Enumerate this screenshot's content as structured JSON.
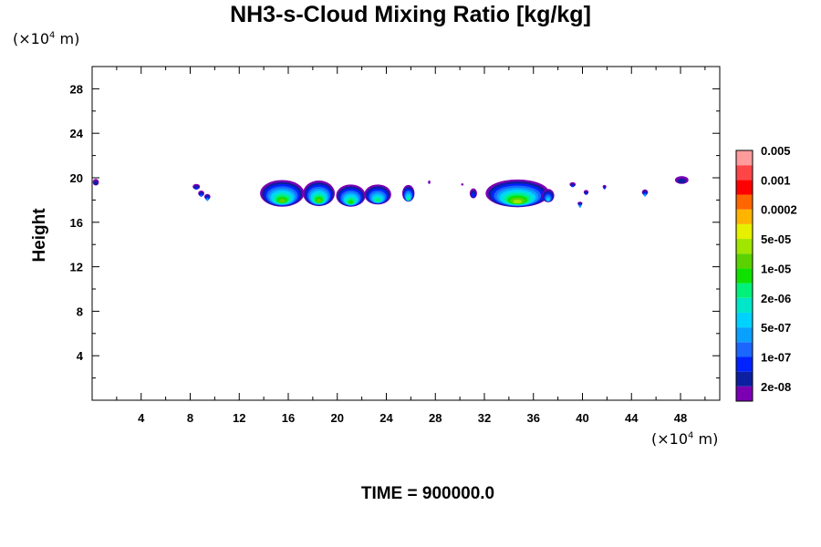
{
  "chart_data": {
    "type": "contour",
    "title": "NH3-s-Cloud Mixing Ratio [kg/kg]",
    "ylabel": "Height",
    "xunit": "(×10⁴ m)",
    "yunit": "(×10⁴ m)",
    "unit_prefix": "(×10",
    "unit_exp": "4",
    "unit_suffix": " m)",
    "xlim": [
      0,
      51.2
    ],
    "ylim": [
      0,
      30
    ],
    "xticks": [
      4,
      8,
      12,
      16,
      20,
      24,
      28,
      32,
      36,
      40,
      44,
      48
    ],
    "yticks": [
      4,
      8,
      12,
      16,
      20,
      24,
      28
    ],
    "colorbar": {
      "colors": [
        "#7b00b4",
        "#0c1fa0",
        "#0022ff",
        "#1a66ff",
        "#0aa0ff",
        "#00d2ff",
        "#00e6c8",
        "#00f07a",
        "#10e000",
        "#5ad200",
        "#a0e600",
        "#e6f000",
        "#ffb400",
        "#ff6600",
        "#ff0000",
        "#ff4646",
        "#ff9b9b"
      ],
      "labels": [
        "2e-08",
        "1e-07",
        "5e-07",
        "2e-06",
        "1e-05",
        "5e-05",
        "0.0002",
        "0.001",
        "0.005"
      ]
    },
    "blobs": [
      {
        "x": 0.3,
        "y": 19.6,
        "w": 0.5,
        "h": 0.6,
        "level": 1
      },
      {
        "x": 8.5,
        "y": 19.2,
        "w": 0.6,
        "h": 0.5,
        "level": 2
      },
      {
        "x": 8.9,
        "y": 18.6,
        "w": 0.5,
        "h": 0.5,
        "level": 3
      },
      {
        "x": 9.4,
        "y": 18.3,
        "w": 0.5,
        "h": 0.5,
        "level": 4
      },
      {
        "x": 15.5,
        "y": 18.6,
        "w": 3.6,
        "h": 2.4,
        "level": 9
      },
      {
        "x": 18.5,
        "y": 18.6,
        "w": 2.6,
        "h": 2.3,
        "level": 9
      },
      {
        "x": 21.1,
        "y": 18.4,
        "w": 2.4,
        "h": 2.0,
        "level": 8
      },
      {
        "x": 23.3,
        "y": 18.5,
        "w": 2.2,
        "h": 1.8,
        "level": 7
      },
      {
        "x": 25.8,
        "y": 18.6,
        "w": 1.0,
        "h": 1.5,
        "level": 7
      },
      {
        "x": 27.5,
        "y": 19.6,
        "w": 0.2,
        "h": 0.3,
        "level": 0
      },
      {
        "x": 30.2,
        "y": 19.4,
        "w": 0.2,
        "h": 0.2,
        "level": 0
      },
      {
        "x": 31.1,
        "y": 18.6,
        "w": 0.6,
        "h": 0.9,
        "level": 2
      },
      {
        "x": 34.7,
        "y": 18.6,
        "w": 5.2,
        "h": 2.5,
        "level": 10
      },
      {
        "x": 37.2,
        "y": 18.4,
        "w": 1.0,
        "h": 1.2,
        "level": 5
      },
      {
        "x": 39.8,
        "y": 17.7,
        "w": 0.4,
        "h": 0.3,
        "level": 4
      },
      {
        "x": 39.2,
        "y": 19.4,
        "w": 0.5,
        "h": 0.4,
        "level": 2
      },
      {
        "x": 40.3,
        "y": 18.7,
        "w": 0.4,
        "h": 0.4,
        "level": 2
      },
      {
        "x": 41.8,
        "y": 19.2,
        "w": 0.3,
        "h": 0.3,
        "level": 2
      },
      {
        "x": 45.1,
        "y": 18.7,
        "w": 0.5,
        "h": 0.5,
        "level": 4
      },
      {
        "x": 48.1,
        "y": 19.8,
        "w": 1.1,
        "h": 0.7,
        "level": 1
      }
    ]
  },
  "time_label": "TIME = 900000.0"
}
